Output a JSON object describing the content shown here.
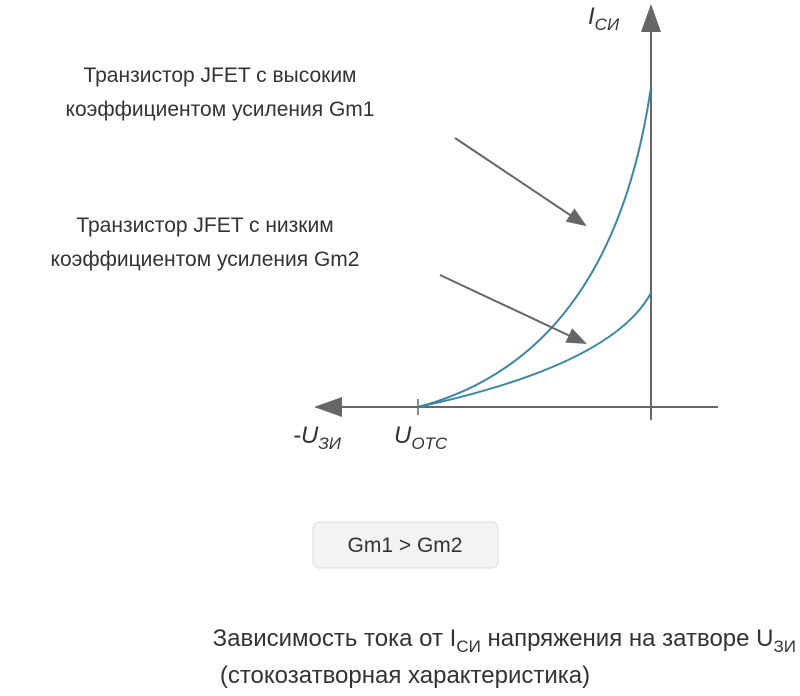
{
  "diagram": {
    "y_axis_label": {
      "main": "I",
      "sub": "СИ"
    },
    "x_axis_label": {
      "main": "-U",
      "sub": "ЗИ"
    },
    "cutoff_label": {
      "main": "U",
      "sub": "ОТС"
    },
    "annotations": [
      {
        "lines": [
          "Транзистор JFET с высоким",
          "коэффициентом усиления  Gm1"
        ]
      },
      {
        "lines": [
          "Транзистор JFET с низким",
          "коэффициентом усиления  Gm2"
        ]
      }
    ],
    "comparison": "Gm1 > Gm2",
    "caption": {
      "line1": [
        {
          "text": "Зависимость тока от I"
        },
        {
          "sub": "СИ"
        },
        {
          "text": " напряжения на затворе U"
        },
        {
          "sub": "ЗИ"
        }
      ],
      "line2": "(стокозатворная  характеристика)"
    }
  }
}
